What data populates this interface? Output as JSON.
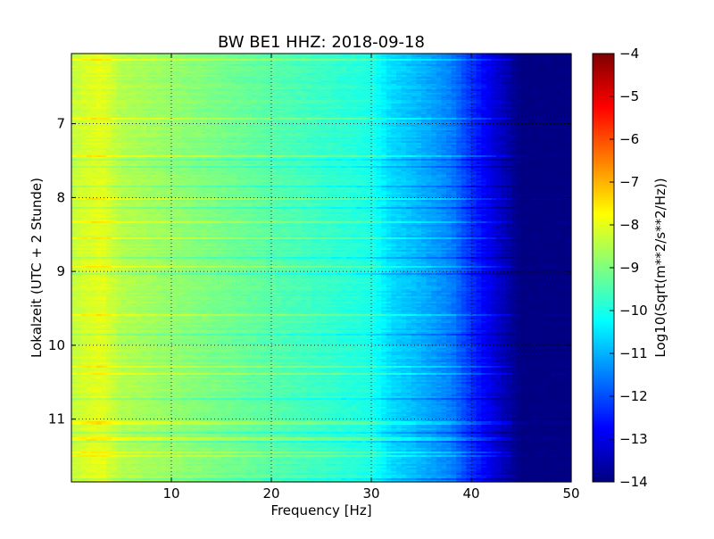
{
  "chart_data": {
    "type": "heatmap",
    "title": "BW BE1 HHZ: 2018-09-18",
    "xlabel": "Frequency [Hz]",
    "ylabel": "Lokalzeit (UTC + 2 Stunde)",
    "colorbar_label": "Log10(Sqrt(m**2/s**2/Hz))",
    "xlim": [
      0,
      50
    ],
    "ylim": [
      11.85,
      6.05
    ],
    "y_inverted": true,
    "x_ticks": [
      10,
      20,
      30,
      40,
      50
    ],
    "x_tick_labels": [
      "10",
      "20",
      "30",
      "40",
      "50"
    ],
    "y_ticks": [
      7,
      8,
      9,
      10,
      11
    ],
    "y_tick_labels": [
      "7",
      "8",
      "9",
      "10",
      "11"
    ],
    "colorbar_range": [
      -14,
      -4
    ],
    "colorbar_ticks": [
      -4,
      -5,
      -6,
      -7,
      -8,
      -9,
      -10,
      -11,
      -12,
      -13,
      -14
    ],
    "colorbar_tick_labels": [
      "−4",
      "−5",
      "−6",
      "−7",
      "−8",
      "−9",
      "−10",
      "−11",
      "−12",
      "−13",
      "−14"
    ],
    "colormap": "jet",
    "grid": true,
    "frequency_profile": [
      {
        "freq": 0,
        "value": -8.4
      },
      {
        "freq": 1,
        "value": -8.2
      },
      {
        "freq": 3,
        "value": -8.0
      },
      {
        "freq": 5,
        "value": -8.5
      },
      {
        "freq": 10,
        "value": -8.8
      },
      {
        "freq": 15,
        "value": -9.1
      },
      {
        "freq": 20,
        "value": -9.4
      },
      {
        "freq": 25,
        "value": -9.7
      },
      {
        "freq": 30,
        "value": -10.0
      },
      {
        "freq": 32,
        "value": -10.6
      },
      {
        "freq": 35,
        "value": -11.0
      },
      {
        "freq": 38,
        "value": -11.5
      },
      {
        "freq": 40,
        "value": -12.3
      },
      {
        "freq": 42,
        "value": -13.0
      },
      {
        "freq": 44,
        "value": -13.7
      },
      {
        "freq": 45,
        "value": -14.0
      },
      {
        "freq": 50,
        "value": -14.0
      }
    ]
  }
}
